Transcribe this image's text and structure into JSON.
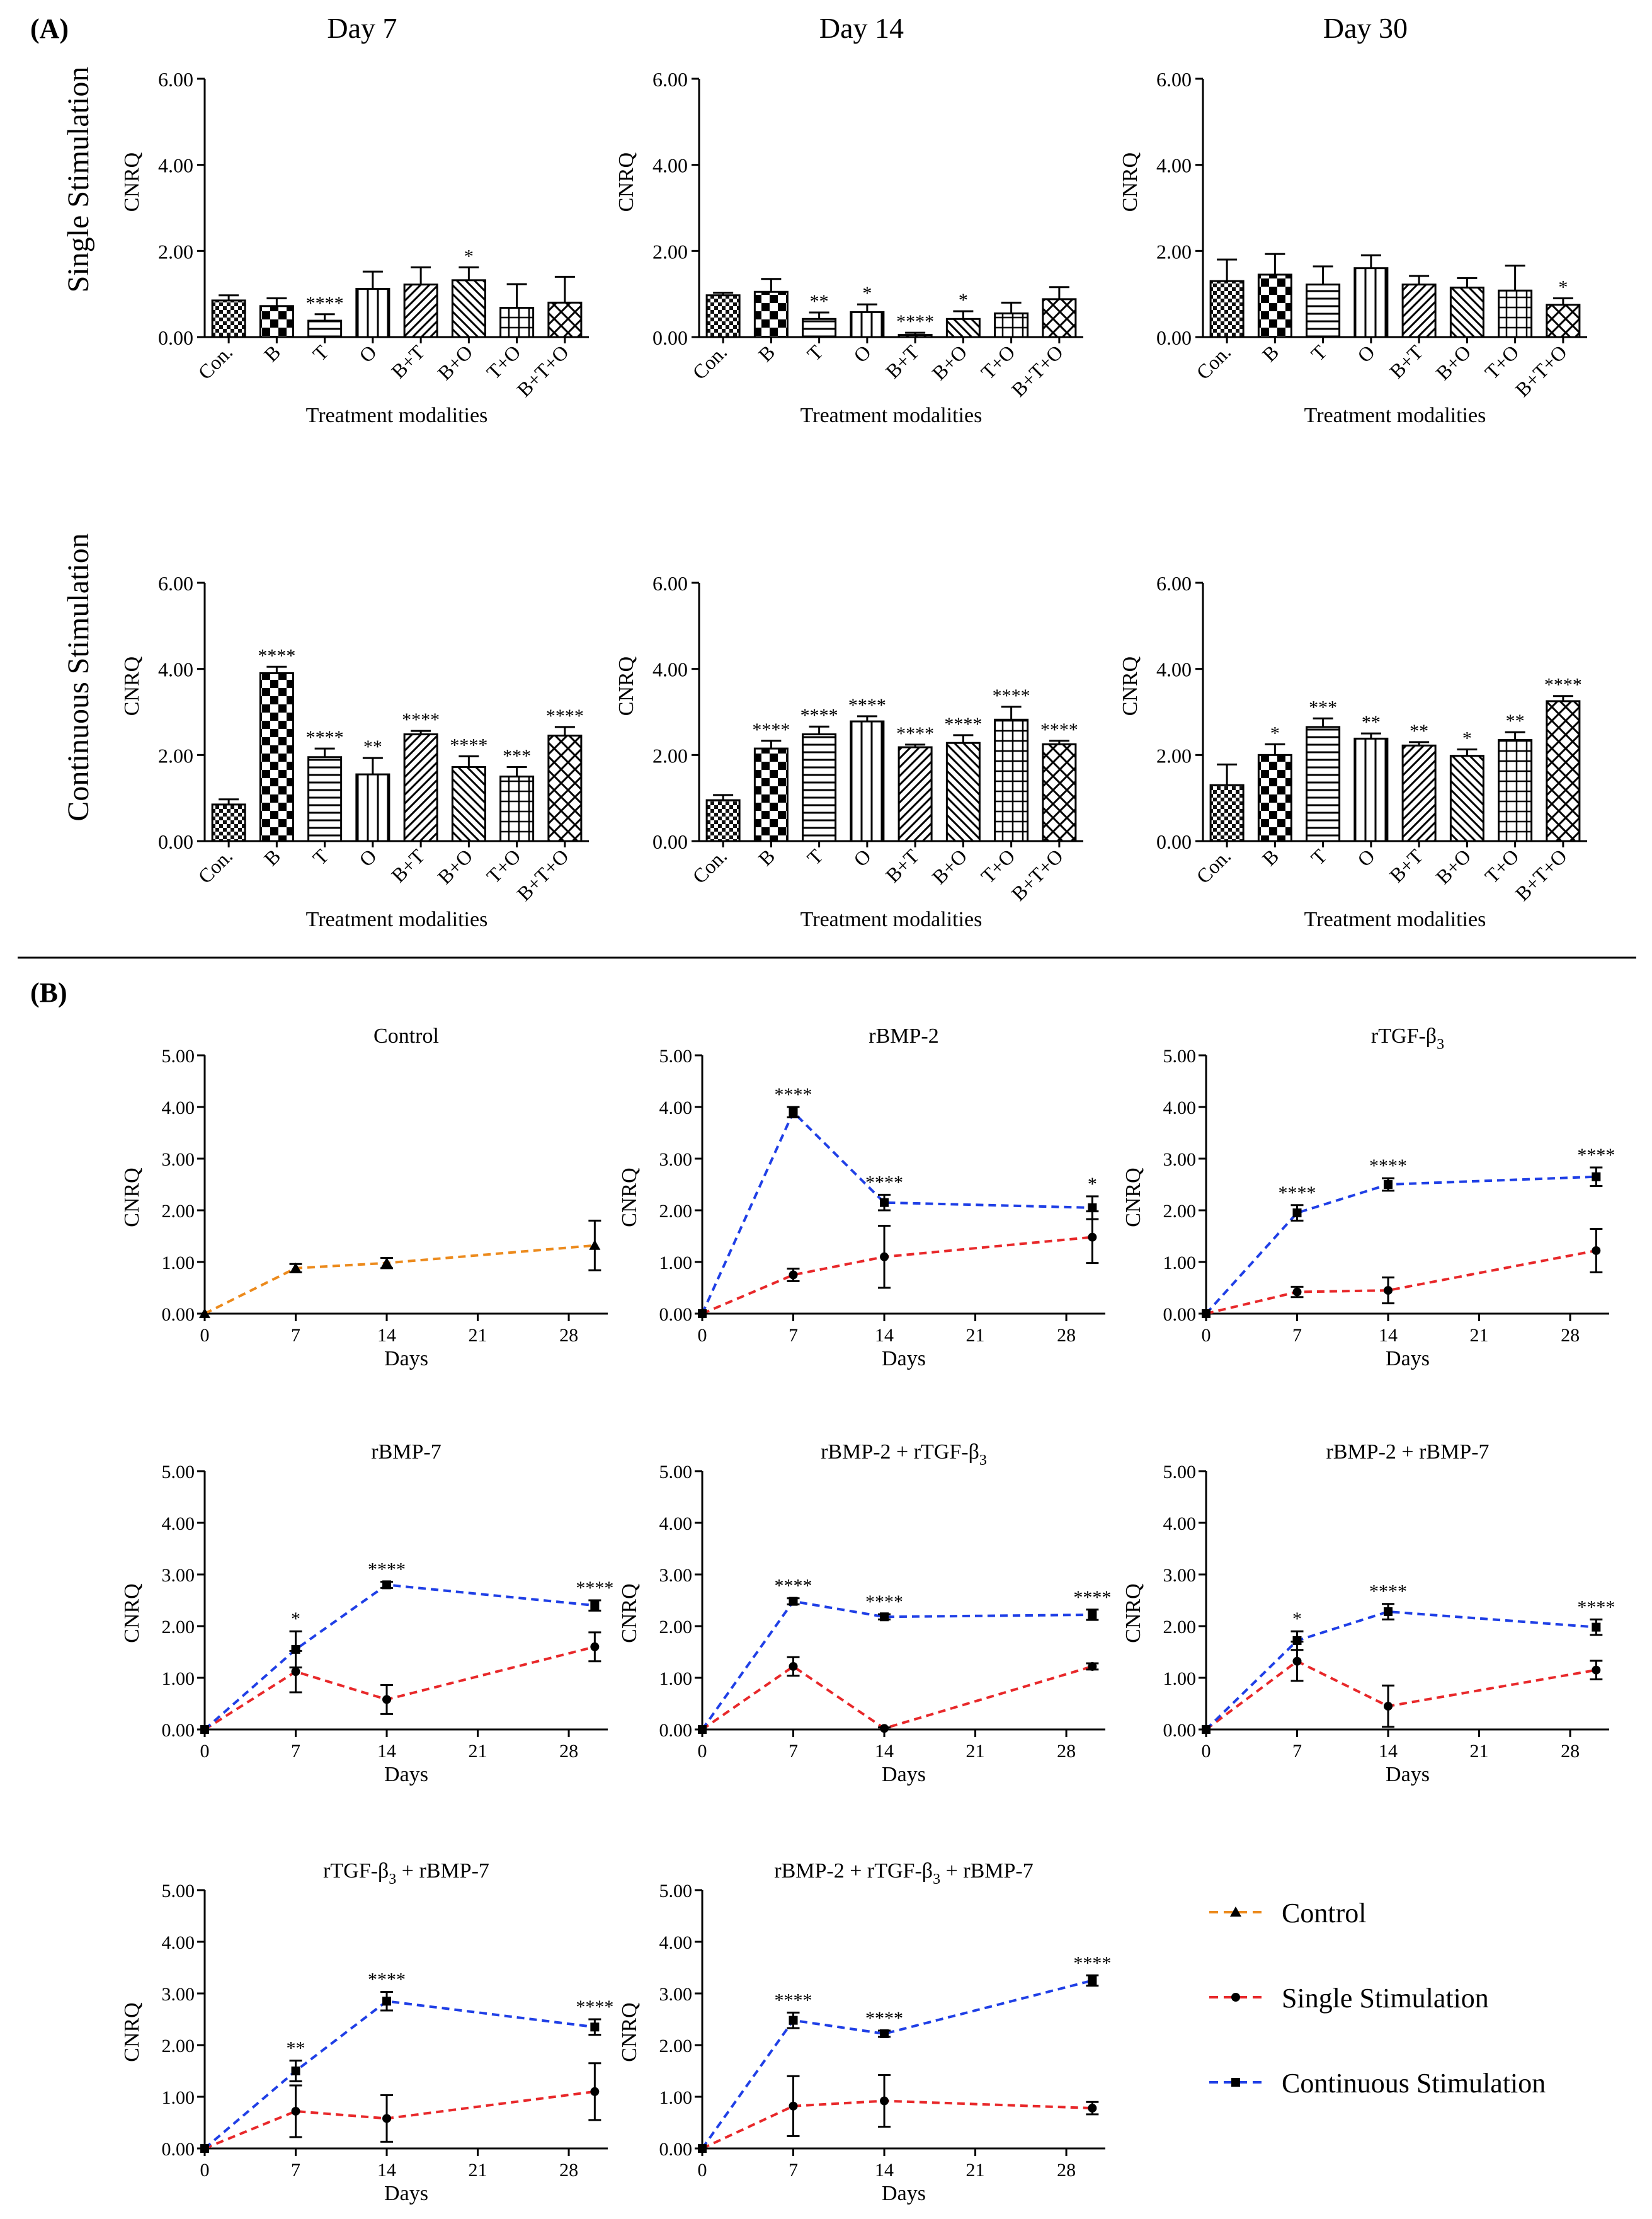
{
  "figure": {
    "panel_a_label": "(A)",
    "panel_b_label": "(B)",
    "row_labels": [
      "Single Stimulation",
      "Continuous Stimulation"
    ],
    "column_titles": [
      "Day 7",
      "Day 14",
      "Day 30"
    ]
  },
  "chart_data": {
    "panel_a": {
      "type": "bar",
      "ylabel": "CNRQ",
      "xlabel": "Treatment modalities",
      "ylim": [
        0,
        6
      ],
      "yticks": [
        "0.00",
        "2.00",
        "4.00",
        "6.00"
      ],
      "categories": [
        "Con.",
        "B",
        "T",
        "O",
        "B+T",
        "B+O",
        "T+O",
        "B+T+O"
      ],
      "patterns": [
        "checker-fine",
        "checker",
        "hlines",
        "vlines",
        "diag-up",
        "diag-down",
        "grid",
        "crosshatch"
      ],
      "charts": [
        {
          "row": "Single Stimulation",
          "day": "Day 7",
          "values": [
            0.85,
            0.72,
            0.38,
            1.12,
            1.22,
            1.32,
            0.68,
            0.8
          ],
          "errors": [
            0.12,
            0.18,
            0.15,
            0.4,
            0.4,
            0.3,
            0.55,
            0.6
          ],
          "stars": [
            "",
            "",
            "****",
            "",
            "",
            "*",
            "",
            ""
          ]
        },
        {
          "row": "Single Stimulation",
          "day": "Day 14",
          "values": [
            0.97,
            1.05,
            0.42,
            0.58,
            0.05,
            0.42,
            0.55,
            0.88
          ],
          "errors": [
            0.06,
            0.3,
            0.15,
            0.18,
            0.05,
            0.18,
            0.25,
            0.28
          ],
          "stars": [
            "",
            "",
            "**",
            "*",
            "****",
            "*",
            "",
            ""
          ]
        },
        {
          "row": "Single Stimulation",
          "day": "Day 30",
          "values": [
            1.3,
            1.45,
            1.22,
            1.6,
            1.22,
            1.15,
            1.08,
            0.75
          ],
          "errors": [
            0.5,
            0.48,
            0.42,
            0.3,
            0.2,
            0.22,
            0.58,
            0.15
          ],
          "stars": [
            "",
            "",
            "",
            "",
            "",
            "",
            "",
            "*"
          ]
        },
        {
          "row": "Continuous Stimulation",
          "day": "Day 7",
          "values": [
            0.85,
            3.9,
            1.95,
            1.55,
            2.48,
            1.72,
            1.5,
            2.45
          ],
          "errors": [
            0.12,
            0.15,
            0.2,
            0.38,
            0.08,
            0.25,
            0.22,
            0.2
          ],
          "stars": [
            "",
            "****",
            "****",
            "**",
            "****",
            "****",
            "***",
            "****"
          ]
        },
        {
          "row": "Continuous Stimulation",
          "day": "Day 14",
          "values": [
            0.95,
            2.15,
            2.48,
            2.78,
            2.18,
            2.28,
            2.82,
            2.25
          ],
          "errors": [
            0.12,
            0.18,
            0.18,
            0.12,
            0.06,
            0.18,
            0.3,
            0.08
          ],
          "stars": [
            "",
            "****",
            "****",
            "****",
            "****",
            "****",
            "****",
            "****"
          ]
        },
        {
          "row": "Continuous Stimulation",
          "day": "Day 30",
          "values": [
            1.3,
            2.0,
            2.65,
            2.38,
            2.22,
            1.98,
            2.35,
            3.25
          ],
          "errors": [
            0.48,
            0.25,
            0.2,
            0.12,
            0.08,
            0.15,
            0.18,
            0.12
          ],
          "stars": [
            "",
            "*",
            "***",
            "**",
            "**",
            "*",
            "**",
            "****"
          ]
        }
      ]
    },
    "panel_b": {
      "type": "line",
      "ylabel": "CNRQ",
      "xlabel": "Days",
      "ylim": [
        0,
        5
      ],
      "xlim": [
        0,
        31
      ],
      "yticks": [
        "0.00",
        "1.00",
        "2.00",
        "3.00",
        "4.00",
        "5.00"
      ],
      "xticks": [
        0,
        7,
        14,
        21,
        28
      ],
      "x": [
        0,
        7,
        14,
        30
      ],
      "legend": [
        {
          "key": "control",
          "label": "Control",
          "color": "#ec8a1c",
          "marker": "triangle"
        },
        {
          "key": "single",
          "label": "Single Stimulation",
          "color": "#e8282a",
          "marker": "circle"
        },
        {
          "key": "continuous",
          "label": "Continuous Stimulation",
          "color": "#1f3fe6",
          "marker": "square"
        }
      ],
      "charts": [
        {
          "title": "Control",
          "series": [
            {
              "key": "control",
              "values": [
                0,
                0.88,
                0.98,
                1.32
              ],
              "errors": [
                0,
                0.08,
                0.1,
                0.48
              ],
              "stars": [
                "",
                "",
                "",
                ""
              ]
            }
          ]
        },
        {
          "title": "rBMP-2",
          "series": [
            {
              "key": "single",
              "values": [
                0,
                0.75,
                1.1,
                1.48
              ],
              "errors": [
                0,
                0.12,
                0.6,
                0.5
              ],
              "stars": [
                "",
                "",
                "",
                ""
              ]
            },
            {
              "key": "continuous",
              "values": [
                0,
                3.9,
                2.15,
                2.05
              ],
              "errors": [
                0,
                0.1,
                0.15,
                0.22
              ],
              "stars": [
                "",
                "****",
                "****",
                "*"
              ]
            }
          ]
        },
        {
          "title": "rTGF-β",
          "title_sub": "3",
          "series": [
            {
              "key": "single",
              "values": [
                0,
                0.42,
                0.45,
                1.22
              ],
              "errors": [
                0,
                0.1,
                0.25,
                0.42
              ],
              "stars": [
                "",
                "",
                "",
                ""
              ]
            },
            {
              "key": "continuous",
              "values": [
                0,
                1.95,
                2.5,
                2.65
              ],
              "errors": [
                0,
                0.15,
                0.12,
                0.18
              ],
              "stars": [
                "",
                "****",
                "****",
                "****"
              ]
            }
          ]
        },
        {
          "title": "rBMP-7",
          "series": [
            {
              "key": "single",
              "values": [
                0,
                1.12,
                0.58,
                1.6
              ],
              "errors": [
                0,
                0.4,
                0.28,
                0.28
              ],
              "stars": [
                "",
                "",
                "",
                ""
              ]
            },
            {
              "key": "continuous",
              "values": [
                0,
                1.55,
                2.8,
                2.4
              ],
              "errors": [
                0,
                0.35,
                0.06,
                0.1
              ],
              "stars": [
                "",
                "*",
                "****",
                "****"
              ]
            }
          ]
        },
        {
          "title": "rBMP-2 + rTGF-β",
          "title_sub": "3",
          "series": [
            {
              "key": "single",
              "values": [
                0,
                1.22,
                0.02,
                1.22
              ],
              "errors": [
                0,
                0.18,
                0.02,
                0.06
              ],
              "stars": [
                "",
                "",
                "",
                ""
              ]
            },
            {
              "key": "continuous",
              "values": [
                0,
                2.48,
                2.18,
                2.22
              ],
              "errors": [
                0,
                0.06,
                0.05,
                0.1
              ],
              "stars": [
                "",
                "****",
                "****",
                "****"
              ]
            }
          ]
        },
        {
          "title": "rBMP-2 + rBMP-7",
          "series": [
            {
              "key": "single",
              "values": [
                0,
                1.32,
                0.45,
                1.15
              ],
              "errors": [
                0,
                0.38,
                0.4,
                0.18
              ],
              "stars": [
                "",
                "",
                "",
                ""
              ]
            },
            {
              "key": "continuous",
              "values": [
                0,
                1.72,
                2.28,
                1.98
              ],
              "errors": [
                0,
                0.18,
                0.15,
                0.15
              ],
              "stars": [
                "",
                "*",
                "****",
                "****"
              ]
            }
          ]
        },
        {
          "title": "rTGF-β",
          "title_sub": "3",
          "title_post": " + rBMP-7",
          "series": [
            {
              "key": "single",
              "values": [
                0,
                0.72,
                0.58,
                1.1
              ],
              "errors": [
                0,
                0.5,
                0.45,
                0.55
              ],
              "stars": [
                "",
                "",
                "",
                ""
              ]
            },
            {
              "key": "continuous",
              "values": [
                0,
                1.5,
                2.85,
                2.35
              ],
              "errors": [
                0,
                0.2,
                0.18,
                0.15
              ],
              "stars": [
                "",
                "**",
                "****",
                "****"
              ]
            }
          ]
        },
        {
          "title": "rBMP-2 + rTGF-β",
          "title_sub": "3",
          "title_post": " + rBMP-7",
          "series": [
            {
              "key": "single",
              "values": [
                0,
                0.82,
                0.92,
                0.78
              ],
              "errors": [
                0,
                0.58,
                0.5,
                0.12
              ],
              "stars": [
                "",
                "",
                "",
                ""
              ]
            },
            {
              "key": "continuous",
              "values": [
                0,
                2.48,
                2.22,
                3.25
              ],
              "errors": [
                0,
                0.15,
                0.06,
                0.1
              ],
              "stars": [
                "",
                "****",
                "****",
                "****"
              ]
            }
          ]
        }
      ]
    }
  }
}
